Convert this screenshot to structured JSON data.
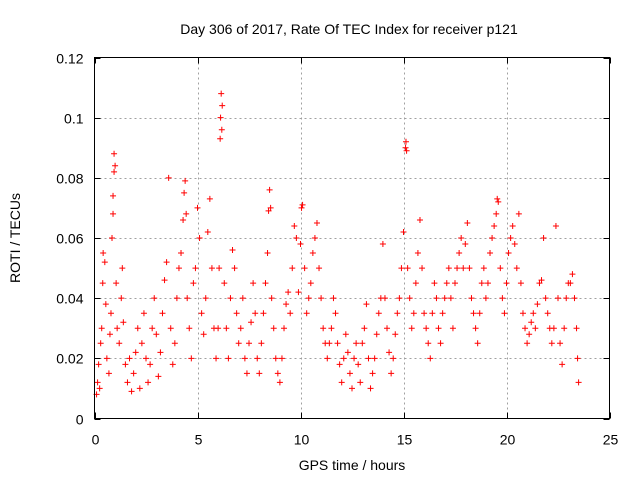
{
  "chart_data": {
    "type": "scatter",
    "title": "Day 306 of 2017, Rate Of TEC Index for receiver p121",
    "xlabel": "GPS time / hours",
    "ylabel": "ROTI / TECUs",
    "xlim": [
      0,
      25
    ],
    "ylim": [
      0,
      0.12
    ],
    "xticks": [
      0,
      5,
      10,
      15,
      20,
      25
    ],
    "yticks": [
      0,
      0.02,
      0.04,
      0.06,
      0.08,
      0.1,
      0.12
    ],
    "xtick_labels": [
      "0",
      "5",
      "10",
      "15",
      "20",
      "25"
    ],
    "ytick_labels": [
      "0",
      "0.02",
      "0.04",
      "0.06",
      "0.08",
      "0.1",
      "0.12"
    ],
    "grid": true,
    "marker": "+",
    "series": [
      {
        "color": "#ff0000",
        "points": [
          [
            0.1,
            0.008
          ],
          [
            0.15,
            0.012
          ],
          [
            0.2,
            0.018
          ],
          [
            0.25,
            0.01
          ],
          [
            0.3,
            0.025
          ],
          [
            0.35,
            0.03
          ],
          [
            0.4,
            0.045
          ],
          [
            0.42,
            0.055
          ],
          [
            0.5,
            0.052
          ],
          [
            0.55,
            0.038
          ],
          [
            0.6,
            0.02
          ],
          [
            0.7,
            0.015
          ],
          [
            0.75,
            0.028
          ],
          [
            0.8,
            0.035
          ],
          [
            0.85,
            0.06
          ],
          [
            0.9,
            0.068
          ],
          [
            0.9,
            0.074
          ],
          [
            0.95,
            0.082
          ],
          [
            0.95,
            0.088
          ],
          [
            1.0,
            0.084
          ],
          [
            1.05,
            0.045
          ],
          [
            1.1,
            0.03
          ],
          [
            1.2,
            0.025
          ],
          [
            1.3,
            0.04
          ],
          [
            1.35,
            0.05
          ],
          [
            1.4,
            0.032
          ],
          [
            1.5,
            0.018
          ],
          [
            1.6,
            0.012
          ],
          [
            1.7,
            0.02
          ],
          [
            1.8,
            0.009
          ],
          [
            1.9,
            0.015
          ],
          [
            2.0,
            0.022
          ],
          [
            2.1,
            0.03
          ],
          [
            2.2,
            0.01
          ],
          [
            2.3,
            0.025
          ],
          [
            2.4,
            0.035
          ],
          [
            2.5,
            0.02
          ],
          [
            2.6,
            0.012
          ],
          [
            2.7,
            0.018
          ],
          [
            2.8,
            0.03
          ],
          [
            2.9,
            0.04
          ],
          [
            3.0,
            0.028
          ],
          [
            3.1,
            0.014
          ],
          [
            3.2,
            0.022
          ],
          [
            3.3,
            0.035
          ],
          [
            3.4,
            0.046
          ],
          [
            3.5,
            0.052
          ],
          [
            3.6,
            0.08
          ],
          [
            3.7,
            0.03
          ],
          [
            3.8,
            0.018
          ],
          [
            3.9,
            0.025
          ],
          [
            4.0,
            0.04
          ],
          [
            4.1,
            0.05
          ],
          [
            4.2,
            0.055
          ],
          [
            4.3,
            0.066
          ],
          [
            4.35,
            0.075
          ],
          [
            4.4,
            0.079
          ],
          [
            4.45,
            0.068
          ],
          [
            4.5,
            0.04
          ],
          [
            4.6,
            0.03
          ],
          [
            4.7,
            0.02
          ],
          [
            4.8,
            0.045
          ],
          [
            4.9,
            0.05
          ],
          [
            5.0,
            0.07
          ],
          [
            5.1,
            0.06
          ],
          [
            5.2,
            0.035
          ],
          [
            5.3,
            0.028
          ],
          [
            5.4,
            0.04
          ],
          [
            5.5,
            0.062
          ],
          [
            5.6,
            0.073
          ],
          [
            5.7,
            0.05
          ],
          [
            5.8,
            0.03
          ],
          [
            5.9,
            0.02
          ],
          [
            6.0,
            0.03
          ],
          [
            6.05,
            0.05
          ],
          [
            6.1,
            0.093
          ],
          [
            6.12,
            0.1
          ],
          [
            6.15,
            0.108
          ],
          [
            6.18,
            0.096
          ],
          [
            6.2,
            0.104
          ],
          [
            6.3,
            0.045
          ],
          [
            6.4,
            0.03
          ],
          [
            6.5,
            0.02
          ],
          [
            6.6,
            0.04
          ],
          [
            6.7,
            0.056
          ],
          [
            6.8,
            0.05
          ],
          [
            6.9,
            0.035
          ],
          [
            7.0,
            0.025
          ],
          [
            7.1,
            0.03
          ],
          [
            7.2,
            0.04
          ],
          [
            7.3,
            0.02
          ],
          [
            7.4,
            0.015
          ],
          [
            7.5,
            0.025
          ],
          [
            7.6,
            0.032
          ],
          [
            7.7,
            0.045
          ],
          [
            7.8,
            0.035
          ],
          [
            7.9,
            0.02
          ],
          [
            8.0,
            0.015
          ],
          [
            8.1,
            0.025
          ],
          [
            8.2,
            0.035
          ],
          [
            8.3,
            0.045
          ],
          [
            8.4,
            0.055
          ],
          [
            8.45,
            0.069
          ],
          [
            8.5,
            0.076
          ],
          [
            8.55,
            0.07
          ],
          [
            8.6,
            0.04
          ],
          [
            8.7,
            0.03
          ],
          [
            8.8,
            0.02
          ],
          [
            8.9,
            0.015
          ],
          [
            9.0,
            0.012
          ],
          [
            9.1,
            0.02
          ],
          [
            9.2,
            0.03
          ],
          [
            9.3,
            0.038
          ],
          [
            9.4,
            0.042
          ],
          [
            9.5,
            0.035
          ],
          [
            9.6,
            0.05
          ],
          [
            9.7,
            0.064
          ],
          [
            9.8,
            0.06
          ],
          [
            9.9,
            0.042
          ],
          [
            10.0,
            0.058
          ],
          [
            10.05,
            0.07
          ],
          [
            10.1,
            0.071
          ],
          [
            10.2,
            0.05
          ],
          [
            10.3,
            0.035
          ],
          [
            10.4,
            0.04
          ],
          [
            10.5,
            0.045
          ],
          [
            10.6,
            0.055
          ],
          [
            10.7,
            0.06
          ],
          [
            10.8,
            0.065
          ],
          [
            10.9,
            0.05
          ],
          [
            11.0,
            0.04
          ],
          [
            11.1,
            0.03
          ],
          [
            11.2,
            0.025
          ],
          [
            11.3,
            0.02
          ],
          [
            11.4,
            0.025
          ],
          [
            11.5,
            0.03
          ],
          [
            11.6,
            0.04
          ],
          [
            11.7,
            0.035
          ],
          [
            11.8,
            0.025
          ],
          [
            11.9,
            0.018
          ],
          [
            12.0,
            0.012
          ],
          [
            12.1,
            0.02
          ],
          [
            12.2,
            0.028
          ],
          [
            12.3,
            0.022
          ],
          [
            12.4,
            0.015
          ],
          [
            12.5,
            0.01
          ],
          [
            12.6,
            0.02
          ],
          [
            12.7,
            0.025
          ],
          [
            12.8,
            0.018
          ],
          [
            12.9,
            0.012
          ],
          [
            13.0,
            0.025
          ],
          [
            13.1,
            0.03
          ],
          [
            13.2,
            0.038
          ],
          [
            13.3,
            0.02
          ],
          [
            13.4,
            0.01
          ],
          [
            13.5,
            0.015
          ],
          [
            13.6,
            0.02
          ],
          [
            13.7,
            0.028
          ],
          [
            13.8,
            0.035
          ],
          [
            13.9,
            0.04
          ],
          [
            14.0,
            0.058
          ],
          [
            14.1,
            0.04
          ],
          [
            14.2,
            0.03
          ],
          [
            14.3,
            0.022
          ],
          [
            14.4,
            0.015
          ],
          [
            14.5,
            0.02
          ],
          [
            14.6,
            0.028
          ],
          [
            14.7,
            0.035
          ],
          [
            14.8,
            0.04
          ],
          [
            14.9,
            0.05
          ],
          [
            15.0,
            0.062
          ],
          [
            15.1,
            0.09
          ],
          [
            15.12,
            0.092
          ],
          [
            15.15,
            0.089
          ],
          [
            15.2,
            0.05
          ],
          [
            15.3,
            0.04
          ],
          [
            15.4,
            0.03
          ],
          [
            15.5,
            0.035
          ],
          [
            15.6,
            0.045
          ],
          [
            15.7,
            0.055
          ],
          [
            15.8,
            0.066
          ],
          [
            15.9,
            0.05
          ],
          [
            16.0,
            0.035
          ],
          [
            16.1,
            0.03
          ],
          [
            16.2,
            0.025
          ],
          [
            16.3,
            0.02
          ],
          [
            16.4,
            0.035
          ],
          [
            16.5,
            0.045
          ],
          [
            16.6,
            0.04
          ],
          [
            16.7,
            0.03
          ],
          [
            16.8,
            0.025
          ],
          [
            16.9,
            0.035
          ],
          [
            17.0,
            0.04
          ],
          [
            17.1,
            0.045
          ],
          [
            17.2,
            0.05
          ],
          [
            17.3,
            0.04
          ],
          [
            17.4,
            0.03
          ],
          [
            17.5,
            0.045
          ],
          [
            17.6,
            0.05
          ],
          [
            17.7,
            0.055
          ],
          [
            17.8,
            0.06
          ],
          [
            17.9,
            0.05
          ],
          [
            18.0,
            0.058
          ],
          [
            18.1,
            0.065
          ],
          [
            18.2,
            0.05
          ],
          [
            18.3,
            0.04
          ],
          [
            18.4,
            0.035
          ],
          [
            18.5,
            0.03
          ],
          [
            18.6,
            0.025
          ],
          [
            18.7,
            0.035
          ],
          [
            18.8,
            0.045
          ],
          [
            18.9,
            0.05
          ],
          [
            19.0,
            0.04
          ],
          [
            19.1,
            0.045
          ],
          [
            19.2,
            0.055
          ],
          [
            19.3,
            0.06
          ],
          [
            19.4,
            0.064
          ],
          [
            19.5,
            0.068
          ],
          [
            19.55,
            0.073
          ],
          [
            19.6,
            0.072
          ],
          [
            19.7,
            0.05
          ],
          [
            19.8,
            0.04
          ],
          [
            19.9,
            0.035
          ],
          [
            20.0,
            0.045
          ],
          [
            20.1,
            0.055
          ],
          [
            20.2,
            0.06
          ],
          [
            20.3,
            0.064
          ],
          [
            20.4,
            0.058
          ],
          [
            20.5,
            0.05
          ],
          [
            20.6,
            0.068
          ],
          [
            20.7,
            0.045
          ],
          [
            20.8,
            0.035
          ],
          [
            20.9,
            0.03
          ],
          [
            21.0,
            0.025
          ],
          [
            21.1,
            0.028
          ],
          [
            21.2,
            0.032
          ],
          [
            21.3,
            0.035
          ],
          [
            21.4,
            0.03
          ],
          [
            21.5,
            0.038
          ],
          [
            21.6,
            0.045
          ],
          [
            21.7,
            0.046
          ],
          [
            21.8,
            0.06
          ],
          [
            21.9,
            0.04
          ],
          [
            22.0,
            0.035
          ],
          [
            22.1,
            0.03
          ],
          [
            22.2,
            0.025
          ],
          [
            22.3,
            0.03
          ],
          [
            22.4,
            0.064
          ],
          [
            22.5,
            0.04
          ],
          [
            22.6,
            0.025
          ],
          [
            22.7,
            0.018
          ],
          [
            22.8,
            0.03
          ],
          [
            22.9,
            0.04
          ],
          [
            23.0,
            0.045
          ],
          [
            23.1,
            0.045
          ],
          [
            23.2,
            0.048
          ],
          [
            23.3,
            0.04
          ],
          [
            23.4,
            0.03
          ],
          [
            23.45,
            0.02
          ],
          [
            23.5,
            0.012
          ]
        ]
      }
    ]
  }
}
